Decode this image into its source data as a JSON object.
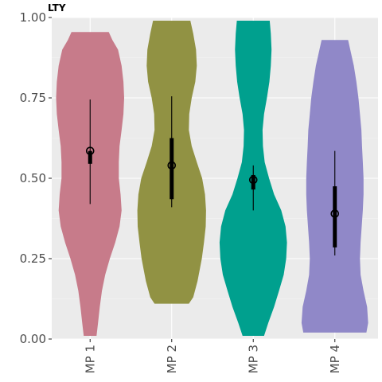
{
  "chart_data": {
    "type": "violin",
    "title": "LTY",
    "xlabel": "",
    "ylabel": "",
    "ylim": [
      0,
      1
    ],
    "y_ticks": [
      "0.00",
      "0.25",
      "0.50",
      "0.75",
      "1.00"
    ],
    "y_tick_values": [
      0,
      0.25,
      0.5,
      0.75,
      1.0
    ],
    "grid": true,
    "categories": [
      "MP 1",
      "MP 2",
      "MP 3",
      "MP 4"
    ],
    "series": [
      {
        "category": "MP 1",
        "color": "#c77b8a",
        "min": 0.01,
        "max": 0.955,
        "q1": 0.545,
        "median": 0.585,
        "q3": 0.585,
        "whisker_low": 0.42,
        "whisker_high": 0.745,
        "density": [
          [
            0.01,
            0.18
          ],
          [
            0.05,
            0.22
          ],
          [
            0.1,
            0.27
          ],
          [
            0.15,
            0.33
          ],
          [
            0.2,
            0.42
          ],
          [
            0.25,
            0.55
          ],
          [
            0.3,
            0.7
          ],
          [
            0.35,
            0.82
          ],
          [
            0.4,
            0.88
          ],
          [
            0.45,
            0.85
          ],
          [
            0.5,
            0.8
          ],
          [
            0.55,
            0.8
          ],
          [
            0.6,
            0.82
          ],
          [
            0.65,
            0.88
          ],
          [
            0.7,
            0.93
          ],
          [
            0.75,
            0.95
          ],
          [
            0.8,
            0.93
          ],
          [
            0.85,
            0.88
          ],
          [
            0.9,
            0.78
          ],
          [
            0.93,
            0.62
          ],
          [
            0.955,
            0.52
          ]
        ]
      },
      {
        "category": "MP 2",
        "color": "#919243",
        "min": 0.11,
        "max": 0.99,
        "q1": 0.435,
        "median": 0.54,
        "q3": 0.625,
        "whisker_low": 0.41,
        "whisker_high": 0.755,
        "density": [
          [
            0.11,
            0.48
          ],
          [
            0.13,
            0.6
          ],
          [
            0.18,
            0.72
          ],
          [
            0.25,
            0.84
          ],
          [
            0.3,
            0.9
          ],
          [
            0.35,
            0.95
          ],
          [
            0.4,
            0.96
          ],
          [
            0.45,
            0.93
          ],
          [
            0.5,
            0.85
          ],
          [
            0.55,
            0.7
          ],
          [
            0.6,
            0.56
          ],
          [
            0.65,
            0.48
          ],
          [
            0.7,
            0.49
          ],
          [
            0.75,
            0.56
          ],
          [
            0.8,
            0.66
          ],
          [
            0.85,
            0.7
          ],
          [
            0.9,
            0.68
          ],
          [
            0.95,
            0.6
          ],
          [
            0.99,
            0.52
          ]
        ]
      },
      {
        "category": "MP 3",
        "color": "#00a08e",
        "min": 0.01,
        "max": 0.99,
        "q1": 0.465,
        "median": 0.495,
        "q3": 0.51,
        "whisker_low": 0.4,
        "whisker_high": 0.54,
        "density": [
          [
            0.01,
            0.3
          ],
          [
            0.05,
            0.42
          ],
          [
            0.1,
            0.58
          ],
          [
            0.15,
            0.72
          ],
          [
            0.2,
            0.85
          ],
          [
            0.25,
            0.92
          ],
          [
            0.3,
            0.94
          ],
          [
            0.35,
            0.9
          ],
          [
            0.4,
            0.78
          ],
          [
            0.45,
            0.58
          ],
          [
            0.5,
            0.44
          ],
          [
            0.55,
            0.32
          ],
          [
            0.6,
            0.27
          ],
          [
            0.65,
            0.26
          ],
          [
            0.7,
            0.3
          ],
          [
            0.75,
            0.38
          ],
          [
            0.8,
            0.45
          ],
          [
            0.85,
            0.49
          ],
          [
            0.9,
            0.51
          ],
          [
            0.95,
            0.49
          ],
          [
            0.99,
            0.46
          ]
        ]
      },
      {
        "category": "MP 4",
        "color": "#9088c8",
        "min": 0.02,
        "max": 0.93,
        "q1": 0.285,
        "median": 0.39,
        "q3": 0.475,
        "whisker_low": 0.26,
        "whisker_high": 0.585,
        "density": [
          [
            0.02,
            0.88
          ],
          [
            0.05,
            0.93
          ],
          [
            0.1,
            0.9
          ],
          [
            0.15,
            0.8
          ],
          [
            0.2,
            0.72
          ],
          [
            0.25,
            0.7
          ],
          [
            0.3,
            0.72
          ],
          [
            0.35,
            0.75
          ],
          [
            0.4,
            0.78
          ],
          [
            0.45,
            0.8
          ],
          [
            0.5,
            0.8
          ],
          [
            0.55,
            0.78
          ],
          [
            0.6,
            0.76
          ],
          [
            0.65,
            0.74
          ],
          [
            0.7,
            0.7
          ],
          [
            0.75,
            0.66
          ],
          [
            0.8,
            0.6
          ],
          [
            0.85,
            0.53
          ],
          [
            0.9,
            0.43
          ],
          [
            0.93,
            0.37
          ]
        ]
      }
    ]
  }
}
